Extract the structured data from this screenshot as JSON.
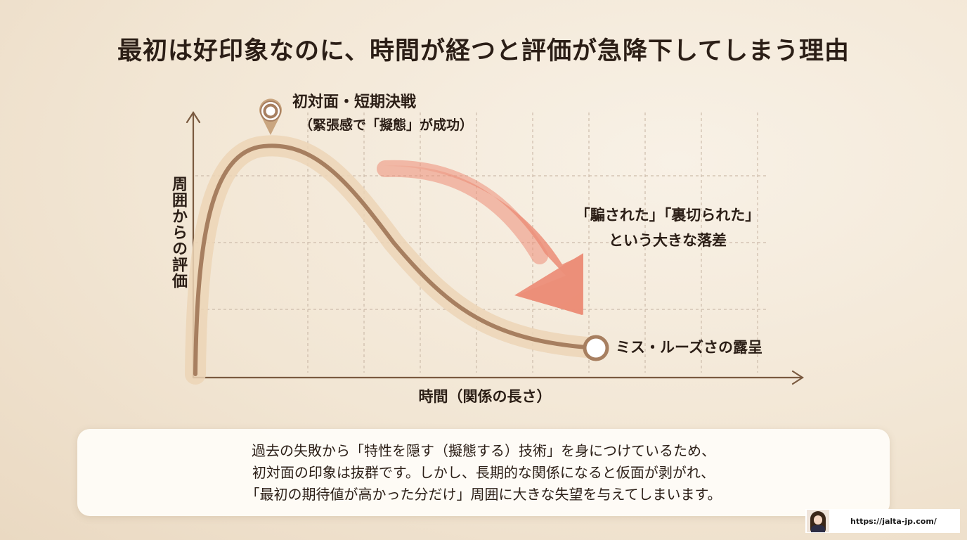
{
  "title": "最初は好印象なのに、時間が経つと評価が急降下してしまう理由",
  "diagram": {
    "peak_label": "初対面・短期決戦",
    "peak_sublabel": "（緊張感で「擬態」が成功）",
    "drop_label_line1": "「騙された」「裏切られた」",
    "drop_label_line2": "という大きな落差",
    "end_label": "ミス・ルーズさの露呈",
    "y_axis_label": "周囲からの評価",
    "x_axis_label": "時間（関係の長さ）",
    "colors": {
      "curve": "#a77f60",
      "curve_glow": "#e9cfae",
      "arrow": "#ec8e78",
      "axis": "#7a5a40",
      "grid": "#cdbcab"
    }
  },
  "note": {
    "line1": "過去の失敗から「特性を隠す（擬態する）技術」を身につけているため、",
    "line2": "初対面の印象は抜群です。しかし、長期的な関係になると仮面が剥がれ、",
    "line3": "「最初の期待値が高かった分だけ」周囲に大きな失望を与えてしまいます。"
  },
  "footer": {
    "url": "https://jalta-jp.com/",
    "avatar_icon": "avatar-icon"
  }
}
